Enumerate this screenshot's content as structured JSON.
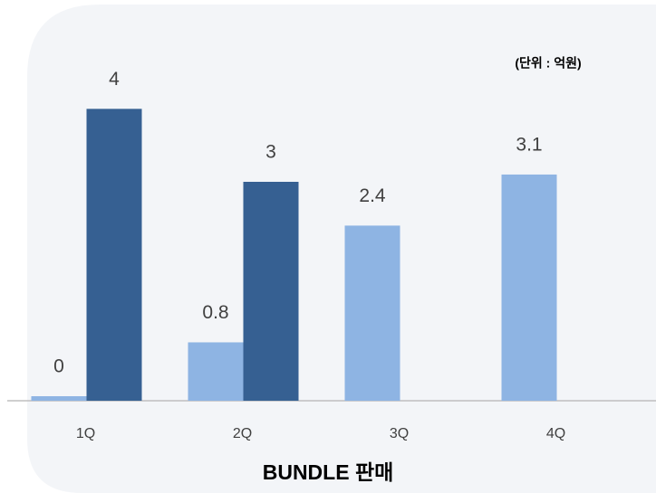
{
  "chart_data": {
    "type": "bar",
    "title": "BUNDLE 판매",
    "annotation": "(단위 : 억원)",
    "categories": [
      "1Q",
      "2Q",
      "3Q",
      "4Q"
    ],
    "series": [
      {
        "color": "#8eb4e3",
        "values": [
          0,
          0.8,
          2.4,
          3.1
        ]
      },
      {
        "color": "#366092",
        "values": [
          4,
          3,
          null,
          null
        ]
      }
    ],
    "ylim": [
      0,
      4.5
    ]
  }
}
